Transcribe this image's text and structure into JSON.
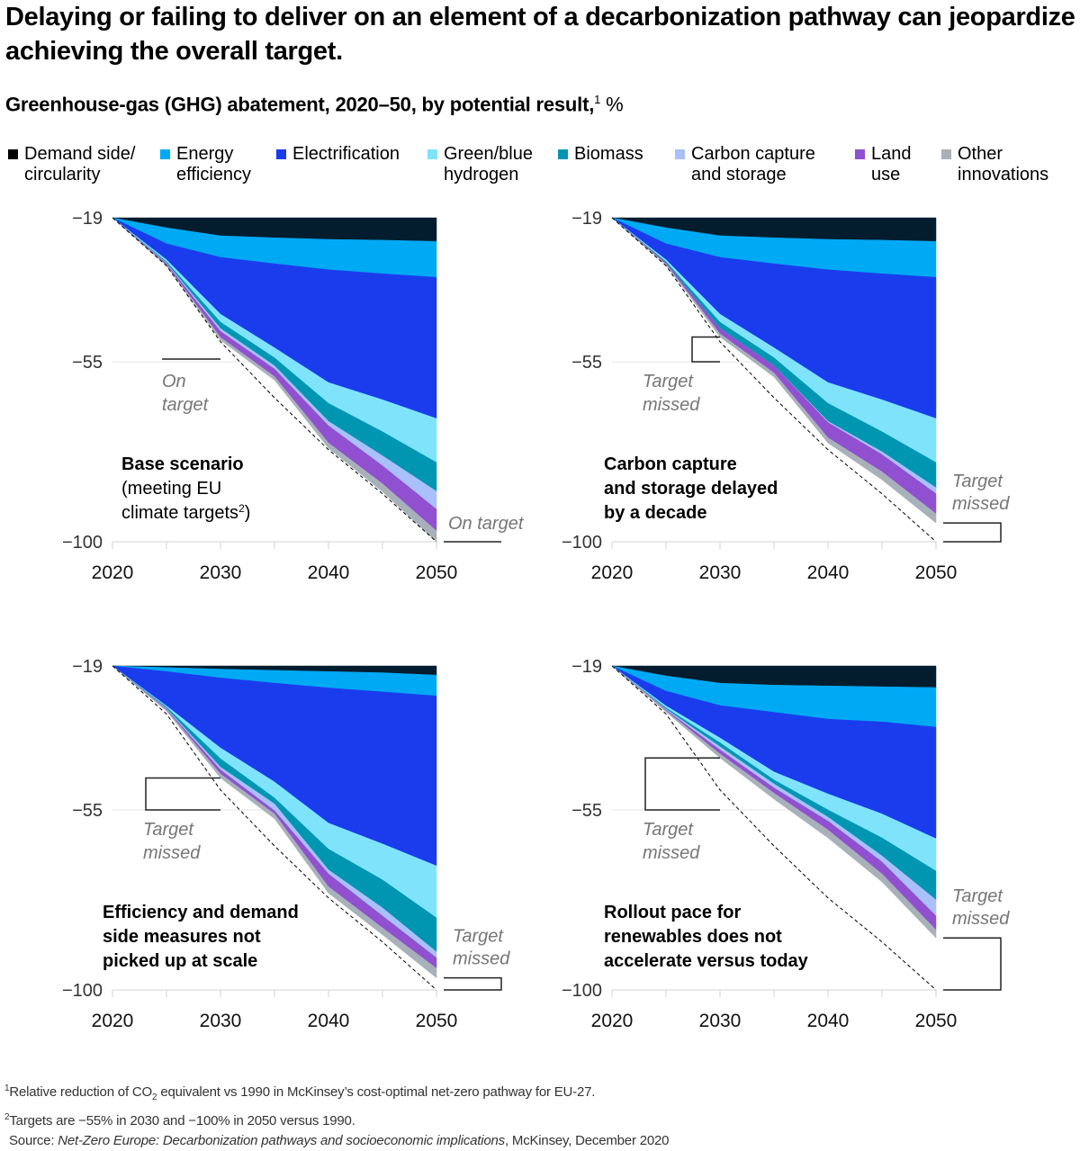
{
  "title": "Delaying or failing to deliver on an element of a decarbonization pathway can jeopardize achieving the overall target.",
  "subtitle": {
    "text": "Greenhouse-gas (GHG) abatement, 2020–50, by potential result,",
    "footnote_ref": "1",
    "unit": "%"
  },
  "legend": [
    {
      "label": "Demand side/\ncircularity",
      "color": "#031d2e",
      "swatch": "#000000"
    },
    {
      "label": "Energy\nefficiency",
      "color": "#00a9f4"
    },
    {
      "label": "Electrification",
      "color": "#1a3ced"
    },
    {
      "label": "Green/blue\nhydrogen",
      "color": "#7fe4fb"
    },
    {
      "label": "Biomass",
      "color": "#0096b2"
    },
    {
      "label": "Carbon capture\nand storage",
      "color": "#a9c0fb"
    },
    {
      "label": "Land\nuse",
      "color": "#9050d0"
    },
    {
      "label": "Other\ninnovations",
      "color": "#a8b1ba"
    }
  ],
  "chart_data": [
    {
      "type": "area",
      "title": "Base scenario",
      "title_note": "(meeting EU\nclimate targets",
      "title_note_ref": "2",
      "x": [
        2020,
        2025,
        2030,
        2035,
        2040,
        2045,
        2050
      ],
      "xticks": [
        "2020",
        "2030",
        "2040",
        "2050"
      ],
      "yticks": [
        "−19",
        "−55",
        "−100"
      ],
      "ylim": [
        -19,
        -100
      ],
      "target_path": [
        -19,
        -31,
        -50,
        -64,
        -77,
        -88,
        -100
      ],
      "series": [
        {
          "name": "Demand side/circularity",
          "values": [
            -19,
            -21.5,
            -23.5,
            -24.0,
            -24.4,
            -24.6,
            -24.9
          ]
        },
        {
          "name": "Energy efficiency",
          "values": [
            -19,
            -25.5,
            -28.9,
            -30.5,
            -32.0,
            -33.0,
            -33.9
          ]
        },
        {
          "name": "Electrification",
          "values": [
            -19,
            -29.5,
            -43.1,
            -51.5,
            -60.2,
            -64.5,
            -69.2
          ]
        },
        {
          "name": "Green/blue hydrogen",
          "values": [
            -19,
            -30.0,
            -45.1,
            -54.0,
            -65.4,
            -72.5,
            -80.2
          ]
        },
        {
          "name": "Biomass",
          "values": [
            -19,
            -30.3,
            -46.7,
            -56.0,
            -69.9,
            -78.5,
            -87.4
          ]
        },
        {
          "name": "Carbon capture and storage",
          "values": [
            -19,
            -30.5,
            -47.4,
            -56.8,
            -71.0,
            -81.0,
            -91.9
          ]
        },
        {
          "name": "Land use",
          "values": [
            -19,
            -30.8,
            -48.9,
            -58.7,
            -75.3,
            -85.5,
            -97.3
          ]
        },
        {
          "name": "Other innovations",
          "values": [
            -19,
            -31.0,
            -49.6,
            -59.6,
            -76.6,
            -87.5,
            -100
          ]
        }
      ],
      "annotations": {
        "mid": {
          "text": "On\ntarget",
          "status": "on-target"
        },
        "end": {
          "text": "On target",
          "status": "on-target"
        }
      }
    },
    {
      "type": "area",
      "title": "Carbon capture\nand storage delayed\nby a decade",
      "x": [
        2020,
        2025,
        2030,
        2035,
        2040,
        2045,
        2050
      ],
      "xticks": [
        "2020",
        "2030",
        "2040",
        "2050"
      ],
      "yticks": [
        "−19",
        "−55",
        "−100"
      ],
      "ylim": [
        -19,
        -100
      ],
      "target_path": [
        -19,
        -31,
        -50,
        -64,
        -77,
        -88,
        -100
      ],
      "series": [
        {
          "name": "Demand side/circularity",
          "values": [
            -19,
            -21.5,
            -23.5,
            -24.0,
            -24.4,
            -24.6,
            -24.9
          ]
        },
        {
          "name": "Energy efficiency",
          "values": [
            -19,
            -25.5,
            -28.9,
            -30.5,
            -32.0,
            -33.0,
            -33.9
          ]
        },
        {
          "name": "Electrification",
          "values": [
            -19,
            -29.5,
            -43.1,
            -51.5,
            -60.2,
            -64.5,
            -69.2
          ]
        },
        {
          "name": "Green/blue hydrogen",
          "values": [
            -19,
            -30.0,
            -45.1,
            -54.0,
            -65.4,
            -72.5,
            -80.2
          ]
        },
        {
          "name": "Biomass",
          "values": [
            -19,
            -30.3,
            -46.7,
            -56.0,
            -69.9,
            -77.5,
            -86.5
          ]
        },
        {
          "name": "Carbon capture and storage",
          "values": [
            -19,
            -30.3,
            -46.7,
            -56.0,
            -70.2,
            -78.2,
            -88.0
          ]
        },
        {
          "name": "Land use",
          "values": [
            -19,
            -30.6,
            -48.0,
            -57.8,
            -74.0,
            -82.5,
            -93.0
          ]
        },
        {
          "name": "Other innovations",
          "values": [
            -19,
            -30.8,
            -48.8,
            -58.8,
            -75.3,
            -84.5,
            -95.3
          ]
        }
      ],
      "annotations": {
        "mid": {
          "text": "Target\nmissed",
          "status": "missed"
        },
        "end": {
          "text": "Target\nmissed",
          "status": "missed"
        }
      }
    },
    {
      "type": "area",
      "title": "Efficiency and demand\nside measures not\npicked up at scale",
      "x": [
        2020,
        2025,
        2030,
        2035,
        2040,
        2045,
        2050
      ],
      "xticks": [
        "2020",
        "2030",
        "2040",
        "2050"
      ],
      "yticks": [
        "−19",
        "−55",
        "−100"
      ],
      "ylim": [
        -19,
        -100
      ],
      "target_path": [
        -19,
        -31,
        -50,
        -64,
        -77,
        -88,
        -100
      ],
      "series": [
        {
          "name": "Demand side/circularity",
          "values": [
            -19,
            -19.4,
            -19.8,
            -20.1,
            -20.4,
            -20.7,
            -21.3
          ]
        },
        {
          "name": "Energy efficiency",
          "values": [
            -19,
            -20.4,
            -22.0,
            -23.3,
            -24.5,
            -25.5,
            -26.5
          ]
        },
        {
          "name": "Electrification",
          "values": [
            -19,
            -29.0,
            -39.5,
            -48.0,
            -58.3,
            -63.5,
            -69.0
          ]
        },
        {
          "name": "Green/blue hydrogen",
          "values": [
            -19,
            -29.3,
            -42.2,
            -52.0,
            -64.8,
            -72.5,
            -82.0
          ]
        },
        {
          "name": "Biomass",
          "values": [
            -19,
            -29.6,
            -44.3,
            -53.5,
            -70.0,
            -79.5,
            -90.5
          ]
        },
        {
          "name": "Carbon capture and storage",
          "values": [
            -19,
            -29.8,
            -45.0,
            -55.2,
            -71.0,
            -81.5,
            -92.0
          ]
        },
        {
          "name": "Land use",
          "values": [
            -19,
            -30.0,
            -46.0,
            -56.0,
            -74.2,
            -84.5,
            -94.6
          ]
        },
        {
          "name": "Other innovations",
          "values": [
            -19,
            -30.3,
            -47.0,
            -57.2,
            -75.8,
            -86.2,
            -97.0
          ]
        }
      ],
      "annotations": {
        "mid": {
          "text": "Target\nmissed",
          "status": "missed"
        },
        "end": {
          "text": "Target\nmissed",
          "status": "missed"
        }
      }
    },
    {
      "type": "area",
      "title": "Rollout pace for\nrenewables does not\naccelerate versus today",
      "x": [
        2020,
        2025,
        2030,
        2035,
        2040,
        2045,
        2050
      ],
      "xticks": [
        "2020",
        "2030",
        "2040",
        "2050"
      ],
      "yticks": [
        "−19",
        "−55",
        "−100"
      ],
      "ylim": [
        -19,
        -100
      ],
      "target_path": [
        -19,
        -31,
        -50,
        -64,
        -77,
        -88,
        -100
      ],
      "series": [
        {
          "name": "Demand side/circularity",
          "values": [
            -19,
            -21.5,
            -23.3,
            -23.8,
            -24.0,
            -24.2,
            -24.4
          ]
        },
        {
          "name": "Energy efficiency",
          "values": [
            -19,
            -25.3,
            -28.9,
            -30.6,
            -32.3,
            -33.0,
            -34.3
          ]
        },
        {
          "name": "Electrification",
          "values": [
            -19,
            -29.0,
            -37.0,
            -45.5,
            -51.0,
            -56.0,
            -62.2
          ]
        },
        {
          "name": "Green/blue hydrogen",
          "values": [
            -19,
            -29.5,
            -38.2,
            -47.5,
            -55.0,
            -62.0,
            -70.3
          ]
        },
        {
          "name": "Biomass",
          "values": [
            -19,
            -29.8,
            -39.2,
            -48.5,
            -56.8,
            -66.5,
            -77.5
          ]
        },
        {
          "name": "Carbon capture and storage",
          "values": [
            -19,
            -30.0,
            -40.0,
            -49.5,
            -57.8,
            -68.0,
            -81.5
          ]
        },
        {
          "name": "Land use",
          "values": [
            -19,
            -30.2,
            -41.0,
            -50.8,
            -60.0,
            -71.0,
            -85.0
          ]
        },
        {
          "name": "Other innovations",
          "values": [
            -19,
            -30.5,
            -42.0,
            -52.3,
            -62.0,
            -73.0,
            -87.0
          ]
        }
      ],
      "annotations": {
        "mid": {
          "text": "Target\nmissed",
          "status": "missed"
        },
        "end": {
          "text": "Target\nmissed",
          "status": "missed"
        }
      }
    }
  ],
  "footnotes": {
    "note1_ref": "1",
    "note1_a": "Relative reduction of CO",
    "note1_sub": "2",
    "note1_b": " equivalent vs 1990 in McKinsey’s cost-optimal net-zero pathway for EU-27.",
    "note2_ref": "2",
    "note2": "Targets are −55% in 2030 and −100% in 2050 versus 1990.",
    "source_label": "Source: ",
    "source_title": "Net-Zero Europe: Decarbonization pathways and socioeconomic implications",
    "source_rest": ", McKinsey, December 2020"
  },
  "colors": {
    "axis": "#cfd3d7",
    "tick_text": "#333333",
    "annotation_text": "#767676",
    "bracket": "#222222",
    "target_line": "#000000"
  }
}
